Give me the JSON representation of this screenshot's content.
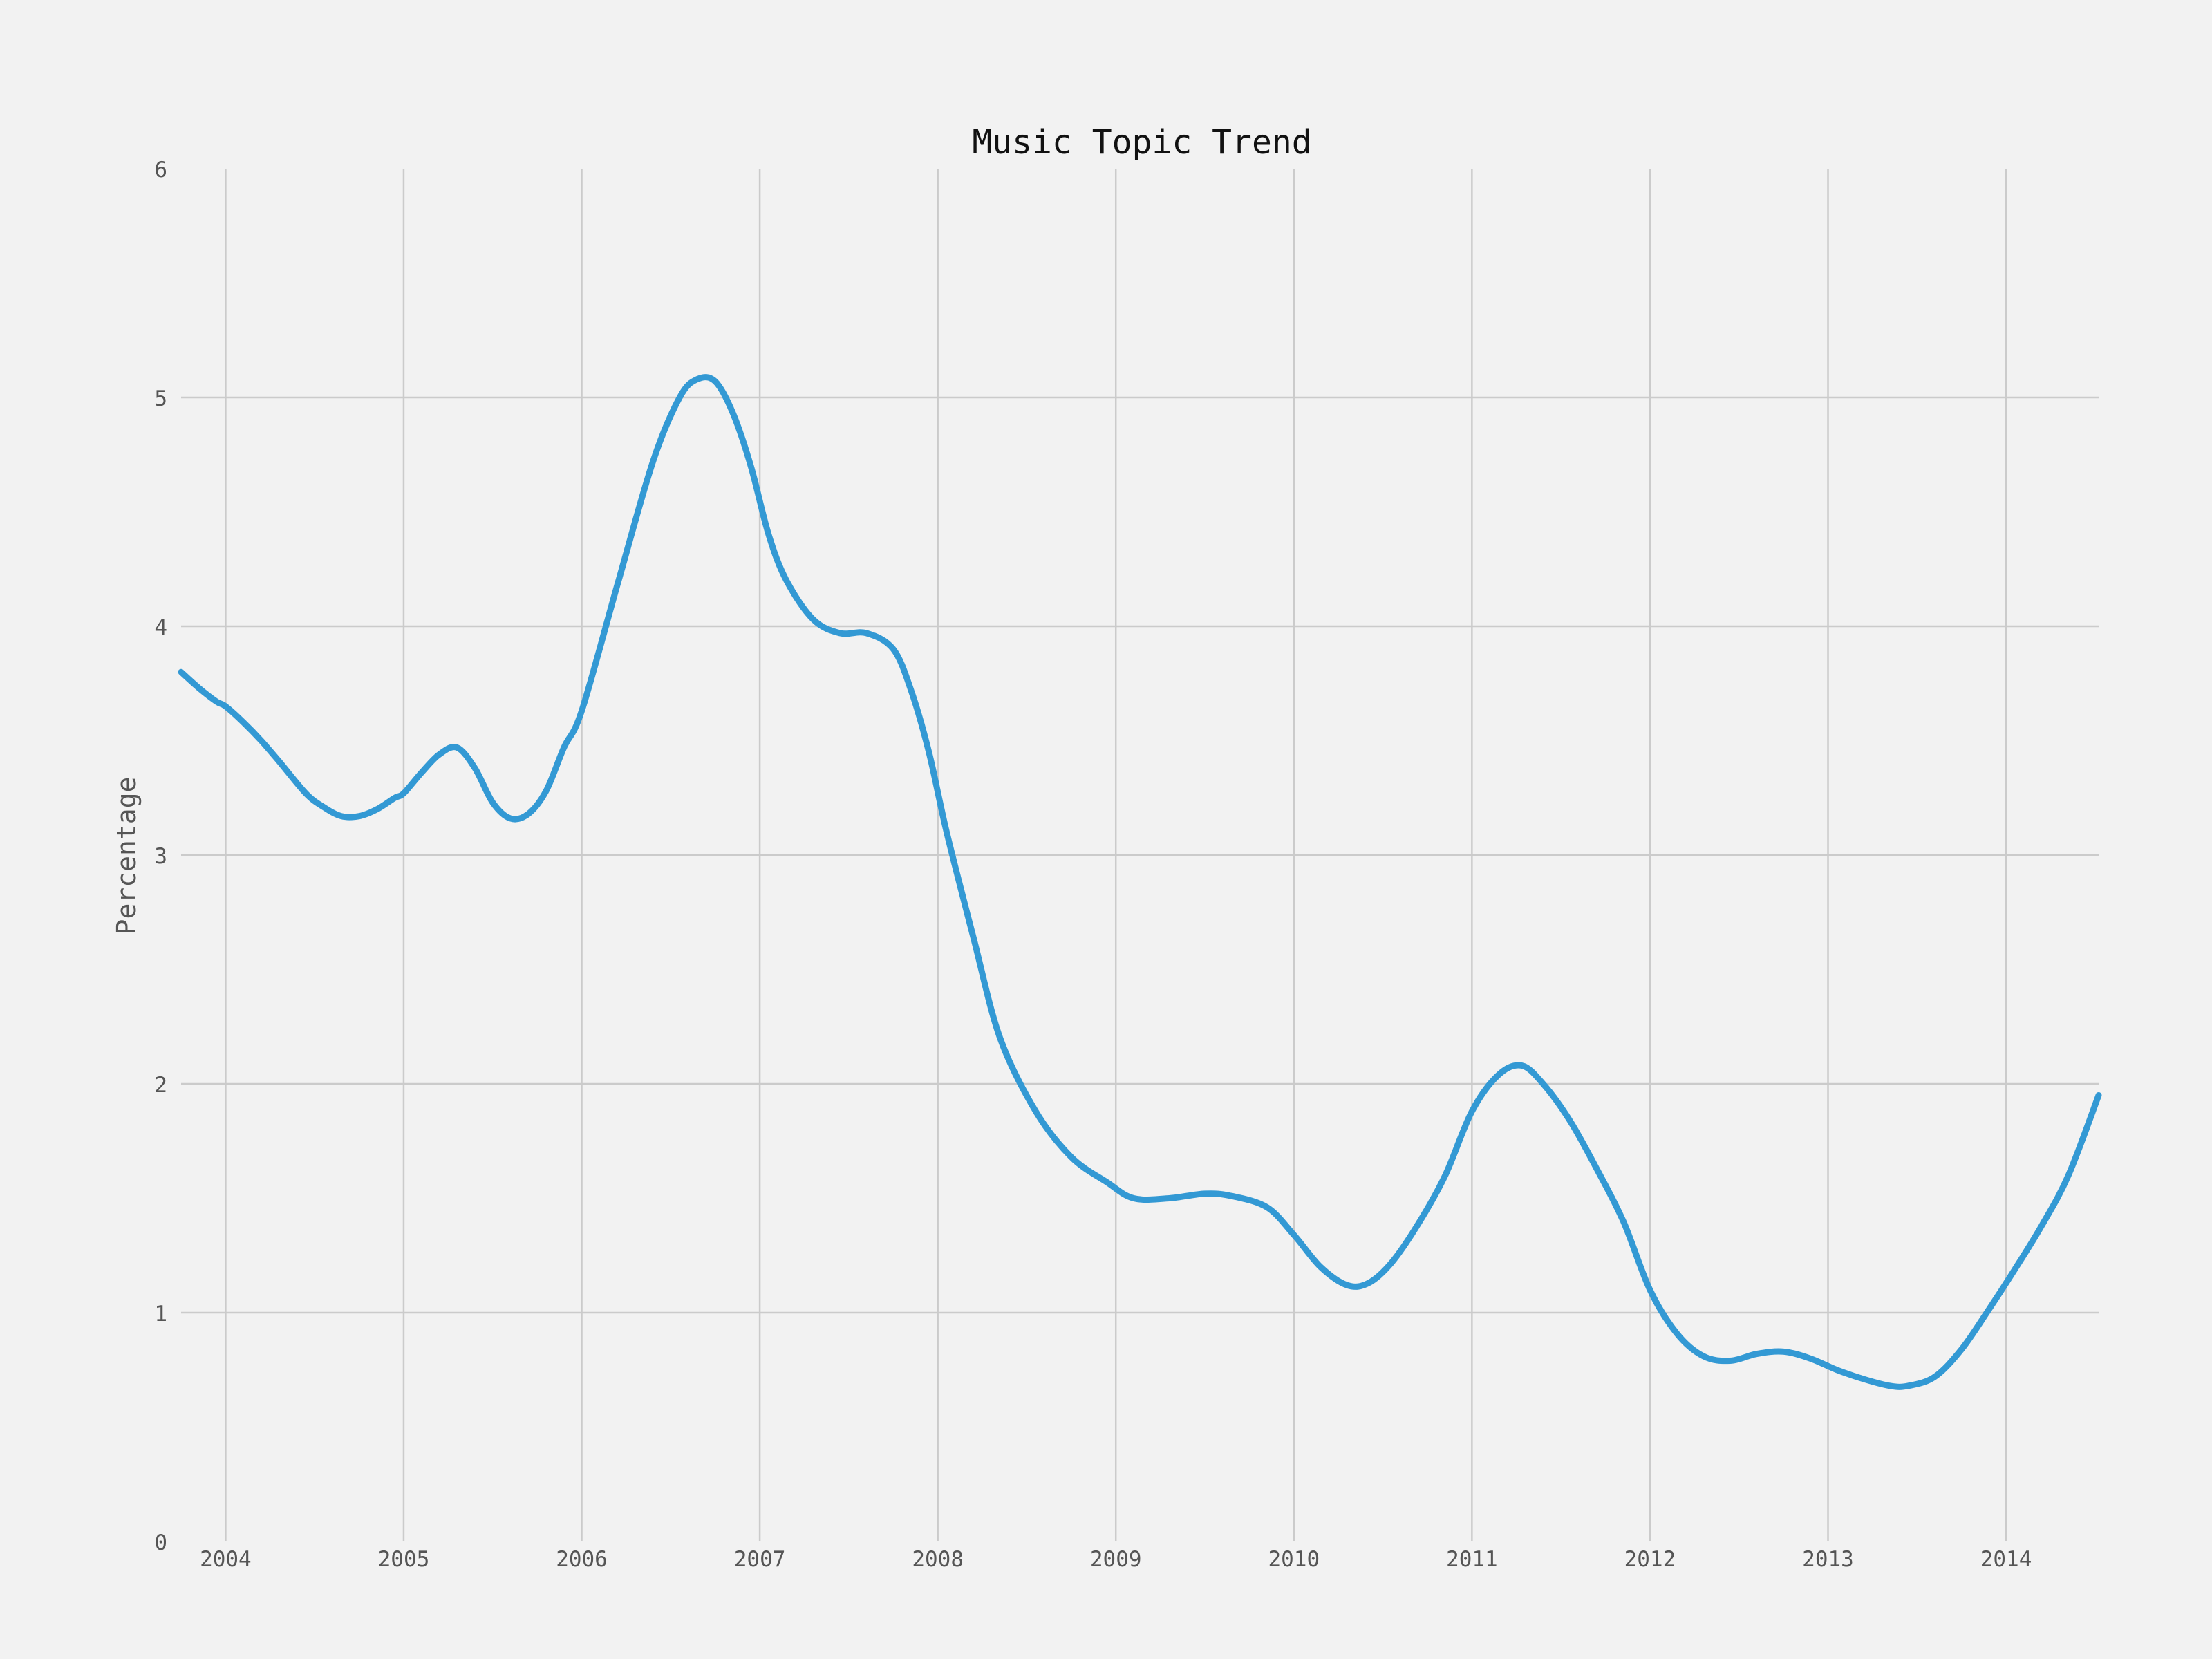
{
  "chart_data": {
    "type": "line",
    "title": "Music Topic Trend",
    "xlabel": "",
    "ylabel": "Percentage",
    "xlim": [
      2003.75,
      2014.52
    ],
    "ylim": [
      0,
      6
    ],
    "x_ticks": [
      2004,
      2005,
      2006,
      2007,
      2008,
      2009,
      2010,
      2011,
      2012,
      2013,
      2014
    ],
    "y_ticks": [
      0,
      1,
      2,
      3,
      4,
      5,
      6
    ],
    "grid": true,
    "series_color": "#3399d4",
    "series": [
      {
        "x": [
          2003.75,
          2003.85,
          2003.95,
          2004.0,
          2004.1,
          2004.2,
          2004.3,
          2004.45,
          2004.55,
          2004.65,
          2004.75,
          2004.85,
          2004.95,
          2005.0,
          2005.1,
          2005.2,
          2005.3,
          2005.4,
          2005.5,
          2005.6,
          2005.7,
          2005.8,
          2005.9,
          2006.0,
          2006.2,
          2006.4,
          2006.55,
          2006.65,
          2006.75,
          2006.85,
          2006.95,
          2007.05,
          2007.15,
          2007.3,
          2007.45,
          2007.6,
          2007.75,
          2007.85,
          2007.95,
          2008.05,
          2008.2,
          2008.35,
          2008.55,
          2008.75,
          2008.95,
          2009.1,
          2009.3,
          2009.5,
          2009.65,
          2009.85,
          2010.0,
          2010.15,
          2010.3,
          2010.42,
          2010.55,
          2010.7,
          2010.85,
          2011.0,
          2011.15,
          2011.28,
          2011.4,
          2011.55,
          2011.7,
          2011.85,
          2012.0,
          2012.15,
          2012.3,
          2012.45,
          2012.6,
          2012.75,
          2012.9,
          2013.05,
          2013.2,
          2013.35,
          2013.45,
          2013.6,
          2013.75,
          2013.9,
          2014.05,
          2014.2,
          2014.35,
          2014.52
        ],
        "y": [
          3.8,
          3.73,
          3.67,
          3.65,
          3.58,
          3.5,
          3.41,
          3.27,
          3.21,
          3.17,
          3.17,
          3.2,
          3.25,
          3.27,
          3.36,
          3.44,
          3.47,
          3.38,
          3.23,
          3.16,
          3.18,
          3.28,
          3.47,
          3.63,
          4.18,
          4.72,
          5.0,
          5.08,
          5.07,
          4.93,
          4.7,
          4.4,
          4.2,
          4.03,
          3.97,
          3.97,
          3.9,
          3.72,
          3.45,
          3.1,
          2.64,
          2.2,
          1.88,
          1.68,
          1.57,
          1.5,
          1.5,
          1.52,
          1.51,
          1.46,
          1.34,
          1.2,
          1.12,
          1.13,
          1.22,
          1.39,
          1.6,
          1.88,
          2.04,
          2.08,
          2.0,
          1.84,
          1.63,
          1.4,
          1.1,
          0.91,
          0.81,
          0.79,
          0.82,
          0.83,
          0.8,
          0.75,
          0.71,
          0.68,
          0.68,
          0.72,
          0.84,
          1.01,
          1.19,
          1.38,
          1.6,
          1.95
        ]
      }
    ]
  }
}
